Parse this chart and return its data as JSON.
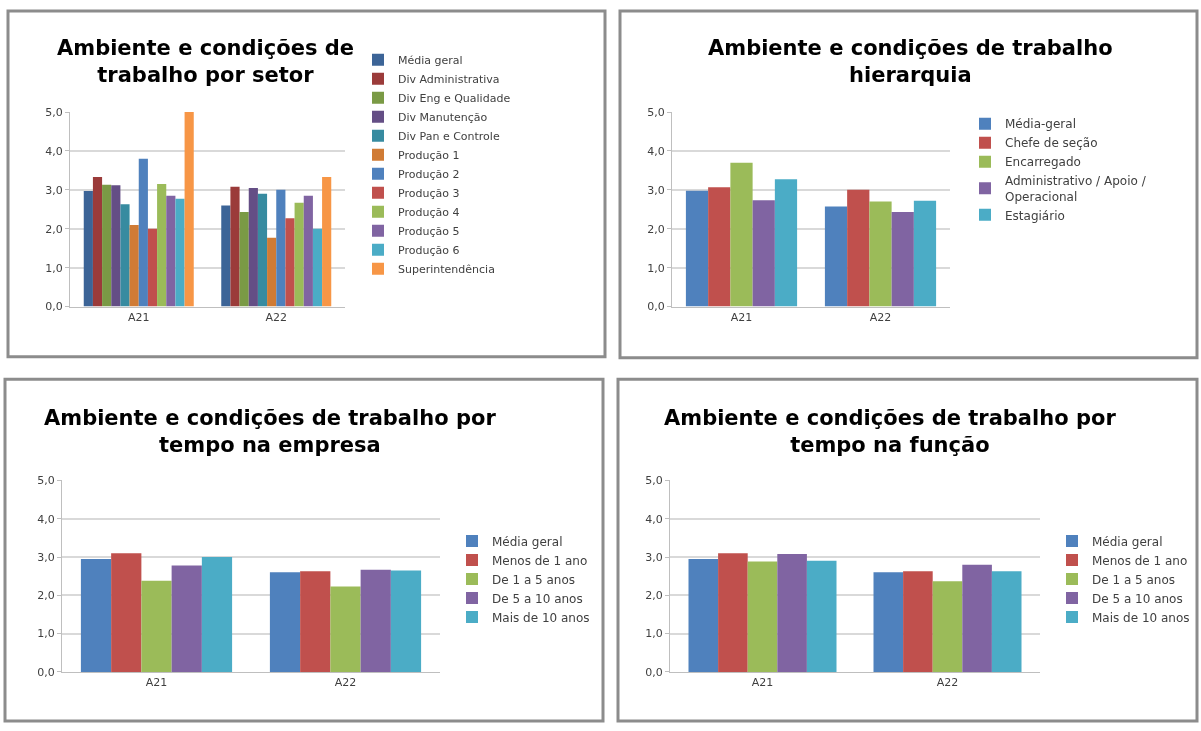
{
  "chart_data": [
    {
      "type": "bar",
      "title": "Ambiente e condições de trabalho por setor",
      "categories": [
        "A21",
        "A22"
      ],
      "ylim": [
        0,
        5
      ],
      "yticks": [
        {
          "value": 0,
          "label": "0,0"
        },
        {
          "value": 1,
          "label": "1,0"
        },
        {
          "value": 2,
          "label": "2,0"
        },
        {
          "value": 3,
          "label": "3,0"
        },
        {
          "value": 4,
          "label": "4,0"
        },
        {
          "value": 5,
          "label": "5,0"
        }
      ],
      "grid": "y",
      "legend": "right",
      "series": [
        {
          "name": "Média geral",
          "color": "#3c6497",
          "values": [
            2.97,
            2.6
          ]
        },
        {
          "name": "Div Administrativa",
          "color": "#9b3b3a",
          "values": [
            3.33,
            3.08
          ]
        },
        {
          "name": "Div Eng e Qualidade",
          "color": "#7a9a45",
          "values": [
            3.13,
            2.43
          ]
        },
        {
          "name": "Div Manutenção",
          "color": "#644e85",
          "values": [
            3.12,
            3.05
          ]
        },
        {
          "name": "Div Pan e Controle",
          "color": "#378ba0",
          "values": [
            2.63,
            2.9
          ]
        },
        {
          "name": "Produção 1",
          "color": "#d07b35",
          "values": [
            2.1,
            1.77
          ]
        },
        {
          "name": "Produção 2",
          "color": "#4f81bd",
          "values": [
            3.8,
            3.0
          ]
        },
        {
          "name": "Produção 3",
          "color": "#c0504d",
          "values": [
            2.0,
            2.27
          ]
        },
        {
          "name": "Produção 4",
          "color": "#9bbb59",
          "values": [
            3.15,
            2.67
          ]
        },
        {
          "name": "Produção 5",
          "color": "#8064a2",
          "values": [
            2.85,
            2.85
          ]
        },
        {
          "name": "Produção 6",
          "color": "#4bacc6",
          "values": [
            2.77,
            2.0
          ]
        },
        {
          "name": "Superintendência",
          "color": "#f79646",
          "values": [
            5.0,
            3.33
          ]
        }
      ]
    },
    {
      "type": "bar",
      "title": "Ambiente e condições de trabalho hierarquia",
      "categories": [
        "A21",
        "A22"
      ],
      "ylim": [
        0,
        5
      ],
      "yticks": [
        {
          "value": 0,
          "label": "0,0"
        },
        {
          "value": 1,
          "label": "1,0"
        },
        {
          "value": 2,
          "label": "2,0"
        },
        {
          "value": 3,
          "label": "3,0"
        },
        {
          "value": 4,
          "label": "4,0"
        },
        {
          "value": 5,
          "label": "5,0"
        }
      ],
      "grid": "y",
      "legend": "right",
      "series": [
        {
          "name": "Média-geral",
          "color": "#4f81bd",
          "values": [
            2.98,
            2.57
          ]
        },
        {
          "name": "Chefe de seção",
          "color": "#c0504d",
          "values": [
            3.07,
            3.0
          ]
        },
        {
          "name": "Encarregado",
          "color": "#9bbb59",
          "values": [
            3.7,
            2.7
          ]
        },
        {
          "name": "Administrativo / Apoio / Operacional",
          "color": "#8064a2",
          "values": [
            2.73,
            2.43
          ]
        },
        {
          "name": "Estagiário",
          "color": "#4bacc6",
          "values": [
            3.27,
            2.72
          ]
        }
      ]
    },
    {
      "type": "bar",
      "title": "Ambiente e condições de trabalho por tempo na empresa",
      "categories": [
        "A21",
        "A22"
      ],
      "ylim": [
        0,
        5
      ],
      "yticks": [
        {
          "value": 0,
          "label": "0,0"
        },
        {
          "value": 1,
          "label": "1,0"
        },
        {
          "value": 2,
          "label": "2,0"
        },
        {
          "value": 3,
          "label": "3,0"
        },
        {
          "value": 4,
          "label": "4,0"
        },
        {
          "value": 5,
          "label": "5,0"
        }
      ],
      "grid": "y",
      "legend": "right",
      "series": [
        {
          "name": "Média geral",
          "color": "#4f81bd",
          "values": [
            2.95,
            2.6
          ]
        },
        {
          "name": "Menos de 1 ano",
          "color": "#c0504d",
          "values": [
            3.1,
            2.63
          ]
        },
        {
          "name": "De 1 a 5 anos",
          "color": "#9bbb59",
          "values": [
            2.38,
            2.23
          ]
        },
        {
          "name": "De 5 a 10 anos",
          "color": "#8064a2",
          "values": [
            2.78,
            2.67
          ]
        },
        {
          "name": "Mais de 10 anos",
          "color": "#4bacc6",
          "values": [
            3.0,
            2.65
          ]
        }
      ]
    },
    {
      "type": "bar",
      "title": "Ambiente e condições de trabalho por tempo na função",
      "categories": [
        "A21",
        "A22"
      ],
      "ylim": [
        0,
        5
      ],
      "yticks": [
        {
          "value": 0,
          "label": "0,0"
        },
        {
          "value": 1,
          "label": "1,0"
        },
        {
          "value": 2,
          "label": "2,0"
        },
        {
          "value": 3,
          "label": "3,0"
        },
        {
          "value": 4,
          "label": "4,0"
        },
        {
          "value": 5,
          "label": "5,0"
        }
      ],
      "grid": "y",
      "legend": "right",
      "series": [
        {
          "name": "Média geral",
          "color": "#4f81bd",
          "values": [
            2.95,
            2.6
          ]
        },
        {
          "name": "Menos de 1 ano",
          "color": "#c0504d",
          "values": [
            3.1,
            2.63
          ]
        },
        {
          "name": "De 1 a 5 anos",
          "color": "#9bbb59",
          "values": [
            2.88,
            2.37
          ]
        },
        {
          "name": "De 5 a 10 anos",
          "color": "#8064a2",
          "values": [
            3.08,
            2.8
          ]
        },
        {
          "name": "Mais de 10 anos",
          "color": "#4bacc6",
          "values": [
            2.9,
            2.63
          ]
        }
      ]
    }
  ]
}
